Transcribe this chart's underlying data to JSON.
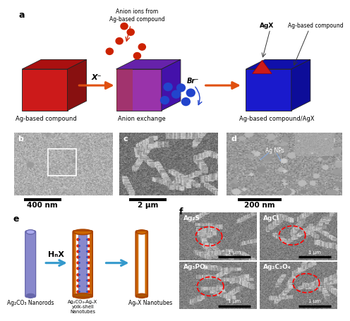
{
  "bg_color": "#ffffff",
  "panel_a": {
    "label": "a",
    "cube1_front": "#cc1a1a",
    "cube1_top": "#aa1010",
    "cube1_side": "#881010",
    "cube2_front": "#7733aa",
    "cube2_top": "#5522aa",
    "cube2_side": "#3311aa",
    "cube3_front": "#1a1acc",
    "cube3_top": "#1010aa",
    "cube3_side": "#0d0d99",
    "arrow_color": "#e05010",
    "text_x_label": "X⁻",
    "text_br_label": "Br⁻",
    "text_anion_ions": "Anion ions from\nAg-based compound",
    "text_agx": "AgX",
    "text_ag_compound": "Ag-based compound",
    "label1": "Ag-based compound",
    "label2": "Anion exchange",
    "label3": "Ag-based compound/AgX",
    "red_dot_color": "#cc2200",
    "blue_dot_color": "#2244cc"
  },
  "panel_b": {
    "label": "b",
    "scale": "400 nm",
    "bg": "#aaaaaa"
  },
  "panel_c": {
    "label": "c",
    "scale": "2 μm",
    "bg": "#777777"
  },
  "panel_d": {
    "label": "d",
    "scale": "200 nm",
    "bg": "#999999",
    "text": "Ag NPs"
  },
  "panel_e": {
    "label": "e",
    "rod_color": "#8888cc",
    "rod_edge": "#6666aa",
    "rod_cap": "#aaaadd",
    "tube_outer": "#cc6600",
    "tube_outer_edge": "#aa4400",
    "arrow_color": "#3399cc",
    "arrow_edge": "#1177aa",
    "label1": "Ag₂CO₃ Nanorods",
    "label2": "Ag₂CO₃-AgₙX\nyolk-shell\nNanotubes",
    "label3": "AgₙX Nanotubes",
    "hnx_label": "HₙX",
    "red_dot": "#dd2200",
    "blue_dot": "#2255cc"
  },
  "panel_f": {
    "label": "f",
    "labels": [
      "Ag₂S",
      "AgCl",
      "Ag₃PO₄",
      "Ag₂C₂O₄"
    ],
    "scale": "1 μm",
    "bg": "#888888"
  }
}
